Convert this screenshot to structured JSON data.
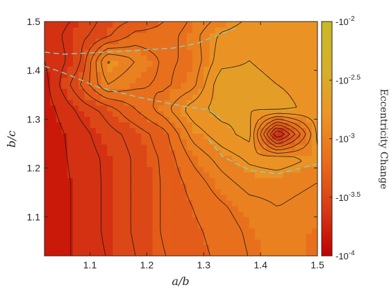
{
  "chart_data": {
    "type": "heatmap",
    "title": "",
    "xlabel": "a/b",
    "ylabel": "b/c",
    "xlim": [
      1.02,
      1.5
    ],
    "ylim": [
      1.02,
      1.5
    ],
    "x_ticks": [
      "1.1",
      "1.2",
      "1.3",
      "1.4",
      "1.5"
    ],
    "y_ticks": [
      "1.1",
      "1.2",
      "1.3",
      "1.4",
      "1.5"
    ],
    "colorbar": {
      "label": "Eccentricity Change",
      "scale": "log",
      "range": [
        0.0001,
        0.01
      ],
      "ticks": [
        "-10^{-4}",
        "-10^{-3.5}",
        "-10^{-3}",
        "-10^{-2.5}",
        "-10^{-2}"
      ],
      "colors": [
        "#c00000",
        "#d83a15",
        "#e86d1b",
        "#eb9525",
        "#d6b02a",
        "#c9b827"
      ]
    },
    "x": [
      1.02,
      1.08,
      1.13,
      1.18,
      1.23,
      1.28,
      1.33,
      1.38,
      1.43,
      1.5
    ],
    "y": [
      1.02,
      1.07,
      1.12,
      1.17,
      1.22,
      1.27,
      1.32,
      1.37,
      1.42,
      1.47,
      1.5
    ],
    "z_log10": [
      [
        -3.85,
        -3.72,
        -3.62,
        -3.5,
        -3.38,
        -3.3,
        -3.22,
        -3.12,
        -3.05,
        -3.1
      ],
      [
        -3.85,
        -3.72,
        -3.6,
        -3.48,
        -3.36,
        -3.28,
        -3.2,
        -3.1,
        -3.02,
        -3.1
      ],
      [
        -3.85,
        -3.72,
        -3.6,
        -3.48,
        -3.36,
        -3.25,
        -3.15,
        -3.05,
        -3.0,
        -3.05
      ],
      [
        -3.85,
        -3.72,
        -3.6,
        -3.48,
        -3.36,
        -3.2,
        -3.05,
        -2.95,
        -2.95,
        -3.0
      ],
      [
        -3.85,
        -3.7,
        -3.6,
        -3.48,
        -3.35,
        -3.1,
        -2.95,
        -2.85,
        -2.8,
        -2.9
      ],
      [
        -3.85,
        -3.68,
        -3.55,
        -3.45,
        -3.3,
        -2.95,
        -2.8,
        -2.7,
        -3.8,
        -2.85
      ],
      [
        -3.82,
        -3.6,
        -3.45,
        -3.25,
        -3.05,
        -2.8,
        -2.7,
        -2.75,
        -2.7,
        -2.8
      ],
      [
        -3.8,
        -3.4,
        -3.0,
        -3.1,
        -3.15,
        -3.05,
        -2.65,
        -2.7,
        -2.75,
        -2.8
      ],
      [
        -3.75,
        -3.55,
        -2.85,
        -3.0,
        -3.15,
        -3.1,
        -2.8,
        -2.75,
        -2.8,
        -2.75
      ],
      [
        -3.7,
        -3.55,
        -3.4,
        -3.2,
        -3.2,
        -3.05,
        -2.85,
        -2.8,
        -2.75,
        -2.8
      ],
      [
        -3.7,
        -3.6,
        -3.45,
        -3.35,
        -3.25,
        -3.1,
        -2.95,
        -2.85,
        -2.85,
        -2.85
      ]
    ]
  }
}
